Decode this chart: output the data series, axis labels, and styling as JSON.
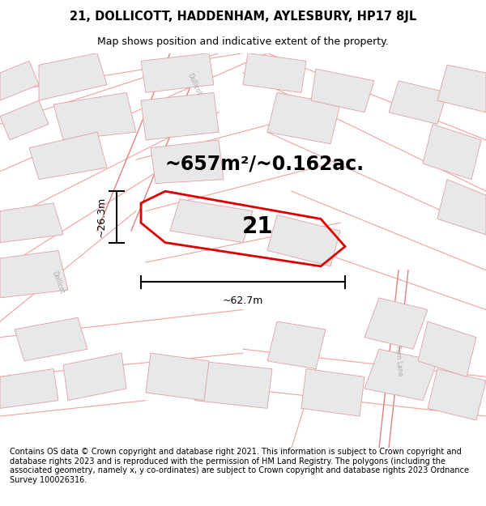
{
  "title": "21, DOLLICOTT, HADDENHAM, AYLESBURY, HP17 8JL",
  "subtitle": "Map shows position and indicative extent of the property.",
  "area_text": "~657m²/~0.162ac.",
  "label_21": "21",
  "dim_width": "~62.7m",
  "dim_height": "~26.3m",
  "footer": "Contains OS data © Crown copyright and database right 2021. This information is subject to Crown copyright and database rights 2023 and is reproduced with the permission of HM Land Registry. The polygons (including the associated geometry, namely x, y co-ordinates) are subject to Crown copyright and database rights 2023 Ordnance Survey 100026316.",
  "bg_color": "#ffffff",
  "plot_edge_color": "#dd0000",
  "road_color": "#f0a0a0",
  "road_color2": "#e08080",
  "building_fill": "#e8e8e8",
  "building_edge": "#e0a0a0",
  "title_fontsize": 10.5,
  "subtitle_fontsize": 9,
  "area_fontsize": 17,
  "label_fontsize": 20,
  "footer_fontsize": 7.0
}
